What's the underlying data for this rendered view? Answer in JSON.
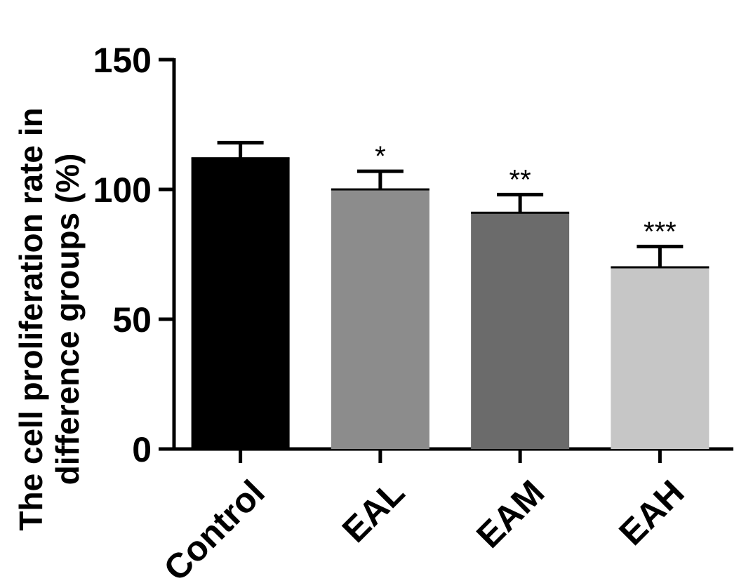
{
  "chart_data": {
    "type": "bar",
    "categories": [
      "Control",
      "EAL",
      "EAM",
      "EAH"
    ],
    "values": [
      112,
      100,
      91,
      70
    ],
    "errors": [
      6,
      7,
      7,
      8
    ],
    "significance": [
      "",
      "*",
      "**",
      "***"
    ],
    "colors": [
      "#000000",
      "#8c8c8c",
      "#6b6b6b",
      "#c6c6c6"
    ],
    "ylabel_lines": [
      "The cell proliferation rate in",
      "difference groups (%)"
    ],
    "ylim": [
      0,
      150
    ],
    "yticks": [
      0,
      50,
      100,
      150
    ],
    "grid": false,
    "legend": "none"
  }
}
